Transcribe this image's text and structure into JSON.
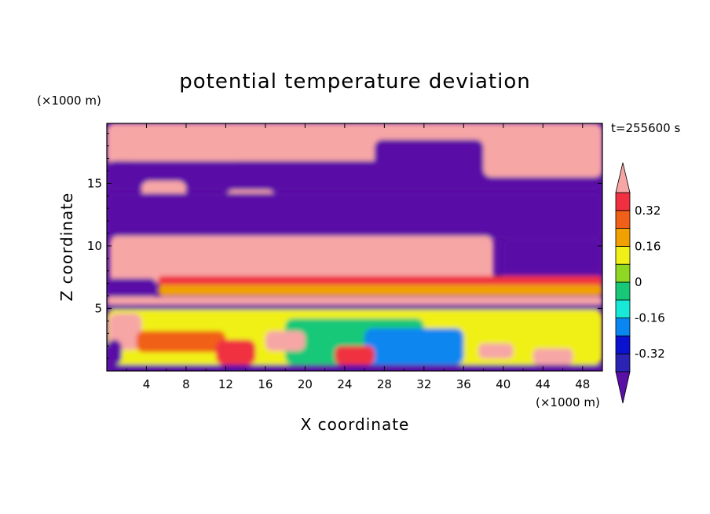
{
  "chart_data": {
    "type": "heatmap",
    "title": "potential temperature deviation",
    "xlabel": "X coordinate",
    "ylabel": "Z coordinate",
    "x_unit": "(×1000 m)",
    "y_unit": "(×1000 m)",
    "time_label": "t=255600 s",
    "xlim": [
      0,
      50
    ],
    "ylim": [
      0,
      19.8
    ],
    "x_ticks": [
      4,
      8,
      12,
      16,
      20,
      24,
      28,
      32,
      36,
      40,
      44,
      48
    ],
    "y_ticks": [
      5,
      10,
      15
    ],
    "colorbar": {
      "levels": [
        -0.4,
        -0.32,
        -0.24,
        -0.16,
        -0.08,
        0,
        0.08,
        0.16,
        0.24,
        0.32,
        0.4
      ],
      "colors": [
        "#5a0fa6",
        "#2a23b4",
        "#0a12d0",
        "#0a86f0",
        "#18e8d8",
        "#18c878",
        "#8ed823",
        "#f0f018",
        "#f0a000",
        "#f06018",
        "#f03040",
        "#f7a6a6"
      ],
      "labels": [
        "0.32",
        "0.16",
        "0",
        "-0.16",
        "-0.32"
      ],
      "label_values": [
        0.32,
        0.16,
        0,
        -0.16,
        -0.32
      ],
      "extend": "both"
    },
    "regions": [
      {
        "level": 0.45,
        "x": [
          0,
          50
        ],
        "z": [
          16.5,
          19.8
        ]
      },
      {
        "level": -0.45,
        "x": [
          0,
          50
        ],
        "z": [
          14.5,
          16.8
        ]
      },
      {
        "level": 0.45,
        "x": [
          1.5,
          14
        ],
        "z": [
          16.8,
          19.2
        ]
      },
      {
        "level": -0.45,
        "x": [
          27,
          38
        ],
        "z": [
          15.5,
          18.5
        ]
      },
      {
        "level": 0.45,
        "x": [
          38,
          50
        ],
        "z": [
          15.5,
          18.2
        ]
      },
      {
        "level": 0.45,
        "x": [
          3.5,
          8
        ],
        "z": [
          12.8,
          15.2
        ]
      },
      {
        "level": 0.45,
        "x": [
          12,
          17
        ],
        "z": [
          11.8,
          14.5
        ]
      },
      {
        "level": 0.45,
        "x": [
          18,
          25
        ],
        "z": [
          10.2,
          12.5
        ]
      },
      {
        "level": 0.45,
        "x": [
          26,
          35
        ],
        "z": [
          9.8,
          11.5
        ]
      },
      {
        "level": 0.45,
        "x": [
          36.5,
          39
        ],
        "z": [
          11.2,
          12.4
        ]
      },
      {
        "level": -0.45,
        "x": [
          0,
          50
        ],
        "z": [
          10.6,
          14.2
        ]
      },
      {
        "level": 0.45,
        "x": [
          0.3,
          39
        ],
        "z": [
          7.0,
          10.8
        ]
      },
      {
        "level": -0.45,
        "x": [
          40,
          50
        ],
        "z": [
          7.0,
          10.5
        ]
      },
      {
        "level": 0.32,
        "x": [
          5.2,
          50
        ],
        "z": [
          6.8,
          7.6
        ]
      },
      {
        "level": 0.16,
        "x": [
          5.2,
          50
        ],
        "z": [
          6.0,
          6.9
        ]
      },
      {
        "level": -0.45,
        "x": [
          0,
          5
        ],
        "z": [
          5.9,
          7.4
        ]
      },
      {
        "level": 0.45,
        "x": [
          0,
          50
        ],
        "z": [
          5.3,
          5.95
        ]
      },
      {
        "level": -0.45,
        "x": [
          0,
          50
        ],
        "z": [
          4.9,
          5.3
        ]
      },
      {
        "level": 0.08,
        "x": [
          0,
          50
        ],
        "z": [
          0.5,
          4.9
        ]
      },
      {
        "level": -0.08,
        "x": [
          18,
          32
        ],
        "z": [
          0.5,
          4.2
        ]
      },
      {
        "level": -0.24,
        "x": [
          26,
          36
        ],
        "z": [
          0.5,
          3.4
        ]
      },
      {
        "level": 0.45,
        "x": [
          0.2,
          3.5
        ],
        "z": [
          1.7,
          4.6
        ]
      },
      {
        "level": 0.24,
        "x": [
          3,
          12
        ],
        "z": [
          1.5,
          3.2
        ]
      },
      {
        "level": 0.32,
        "x": [
          11,
          15
        ],
        "z": [
          0.5,
          2.5
        ]
      },
      {
        "level": 0.32,
        "x": [
          23,
          27
        ],
        "z": [
          0.5,
          2.0
        ]
      },
      {
        "level": 0.45,
        "x": [
          16,
          20
        ],
        "z": [
          1.6,
          3.2
        ]
      },
      {
        "level": 0.45,
        "x": [
          37.5,
          41
        ],
        "z": [
          1.0,
          2.2
        ]
      },
      {
        "level": 0.45,
        "x": [
          43,
          47
        ],
        "z": [
          0.5,
          1.8
        ]
      },
      {
        "level": -0.45,
        "x": [
          0,
          1.5
        ],
        "z": [
          0.5,
          2.5
        ]
      },
      {
        "level": -0.45,
        "x": [
          0,
          50
        ],
        "z": [
          0,
          0.5
        ]
      }
    ]
  }
}
